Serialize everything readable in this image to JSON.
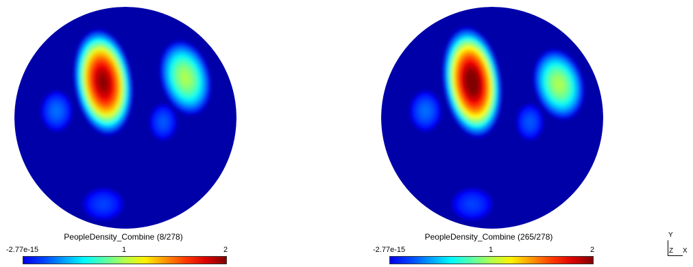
{
  "chart_data": [
    {
      "type": "heatmap",
      "title": "PeopleDensity_Combine (8/278)",
      "colorbar": {
        "min_label": "-2.77e-15",
        "mid_label": "1",
        "max_label": "2",
        "range": [
          -2.77e-15,
          2
        ],
        "colormap": "jet"
      },
      "blobs": [
        {
          "cx": 0.4,
          "cy": 0.34,
          "rx": 0.13,
          "ry": 0.24,
          "rot": -8,
          "peak": 2.0
        },
        {
          "cx": 0.77,
          "cy": 0.32,
          "rx": 0.11,
          "ry": 0.17,
          "rot": -15,
          "peak": 1.0
        },
        {
          "cx": 0.19,
          "cy": 0.47,
          "rx": 0.07,
          "ry": 0.09,
          "rot": 0,
          "peak": 0.3
        },
        {
          "cx": 0.67,
          "cy": 0.52,
          "rx": 0.06,
          "ry": 0.08,
          "rot": 0,
          "peak": 0.25
        },
        {
          "cx": 0.4,
          "cy": 0.89,
          "rx": 0.09,
          "ry": 0.07,
          "rot": 0,
          "peak": 0.2
        }
      ]
    },
    {
      "type": "heatmap",
      "title": "PeopleDensity_Combine (265/278)",
      "colorbar": {
        "min_label": "-2.77e-15",
        "mid_label": "1",
        "max_label": "2",
        "range": [
          -2.77e-15,
          2
        ],
        "colormap": "jet"
      },
      "blobs": [
        {
          "cx": 0.41,
          "cy": 0.34,
          "rx": 0.13,
          "ry": 0.25,
          "rot": -8,
          "peak": 2.1
        },
        {
          "cx": 0.8,
          "cy": 0.35,
          "rx": 0.11,
          "ry": 0.16,
          "rot": -15,
          "peak": 1.0
        },
        {
          "cx": 0.2,
          "cy": 0.47,
          "rx": 0.07,
          "ry": 0.09,
          "rot": 0,
          "peak": 0.3
        },
        {
          "cx": 0.67,
          "cy": 0.52,
          "rx": 0.06,
          "ry": 0.08,
          "rot": 0,
          "peak": 0.25
        },
        {
          "cx": 0.41,
          "cy": 0.89,
          "rx": 0.09,
          "ry": 0.07,
          "rot": 0,
          "peak": 0.2
        }
      ]
    }
  ],
  "axes_triad": {
    "y_label": "Y",
    "z_label": "Z",
    "x_label": "X"
  },
  "colors": {
    "background_field": "#0000a8"
  }
}
